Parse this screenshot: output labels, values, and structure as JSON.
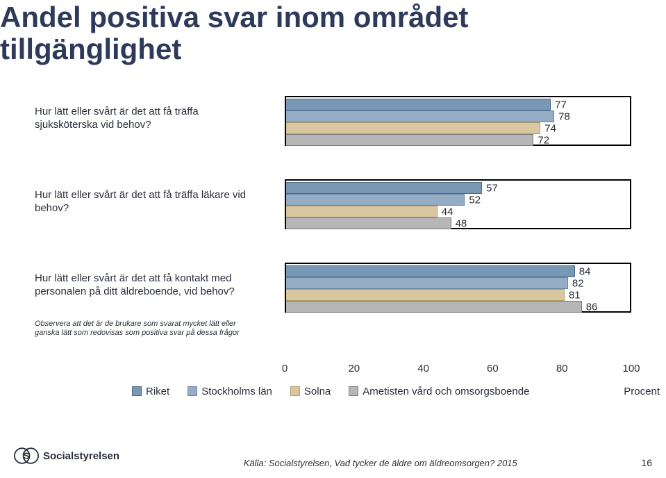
{
  "title": "Andel positiva svar inom området\ntillgänglighet",
  "chart": {
    "type": "bar",
    "xlim": [
      0,
      100
    ],
    "xtick_step": 20,
    "xticks": [
      0,
      20,
      40,
      60,
      80,
      100
    ],
    "axis_right_label": "Procent",
    "bar_width_pct": 0.99,
    "group_border_color": "#000000",
    "group_border_width": 2,
    "background_color": "#ffffff",
    "label_fontsize": 15,
    "series": [
      {
        "name": "Riket",
        "color": "#7998b5",
        "border": "#4c6b85"
      },
      {
        "name": "Stockholms län",
        "color": "#94acc4",
        "border": "#6884a0"
      },
      {
        "name": "Solna",
        "color": "#d9c7a0",
        "border": "#b49d6d"
      },
      {
        "name": "Ametisten vård och omsorgsboende",
        "color": "#b6b6b6",
        "border": "#7a7a7a"
      }
    ],
    "questions": [
      {
        "label": "Hur lätt eller svårt är det att få träffa sjuksköterska vid behov?",
        "values": [
          77,
          78,
          74,
          72
        ]
      },
      {
        "label": "Hur lätt eller svårt är det att få träffa läkare vid behov?",
        "values": [
          57,
          52,
          44,
          48
        ]
      },
      {
        "label": "Hur lätt eller svårt är det att få kontakt med personalen på ditt äldreboende, vid behov?",
        "values": [
          84,
          82,
          81,
          86
        ]
      }
    ],
    "footnote": "Observera att det är de brukare som svarat mycket lätt eller ganska lätt som redovisas som positiva svar på dessa frågor"
  },
  "footer": {
    "logo_text": "Socialstyrelsen",
    "source": "Källa: Socialstyrelsen, Vad tycker de äldre om äldreomsorgen? 2015",
    "page_number": "16"
  }
}
